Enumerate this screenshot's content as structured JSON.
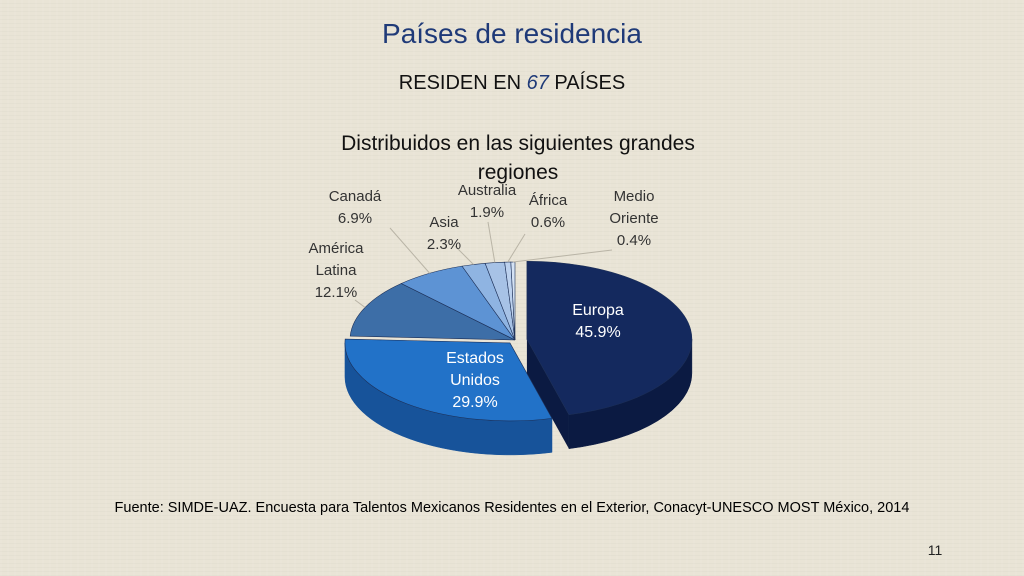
{
  "slide": {
    "title": "Países de residencia",
    "subtitle_prefix": "RESIDEN EN ",
    "subtitle_number": "67",
    "subtitle_suffix": " PAÍSES",
    "source": "Fuente: SIMDE-UAZ. Encuesta para Talentos Mexicanos Residentes en el Exterior, Conacyt-UNESCO MOST México, 2014",
    "page_number": "11"
  },
  "chart_data": {
    "type": "pie",
    "title": "Distribuidos en las siguientes grandes regiones",
    "series": [
      {
        "name": "Europa",
        "label": "Europa",
        "value": 45.9,
        "value_label": "45.9%",
        "color": "#14295e",
        "side": "#0b1a42"
      },
      {
        "name": "Estados Unidos",
        "label": "Estados Unidos",
        "value": 29.9,
        "value_label": "29.9%",
        "color": "#2272c8",
        "side": "#17539a"
      },
      {
        "name": "América Latina",
        "label": "América Latina",
        "value": 12.1,
        "value_label": "12.1%",
        "color": "#3d6ea7",
        "side": "#284f80"
      },
      {
        "name": "Canadá",
        "label": "Canadá",
        "value": 6.9,
        "value_label": "6.9%",
        "color": "#5d93d4",
        "side": "#416fa8"
      },
      {
        "name": "Asia",
        "label": "Asia",
        "value": 2.3,
        "value_label": "2.3%",
        "color": "#8fb4e2",
        "side": "#6a8fbe"
      },
      {
        "name": "Australia",
        "label": "Australia",
        "value": 1.9,
        "value_label": "1.9%",
        "color": "#a7c2e6",
        "side": "#7f9cc4"
      },
      {
        "name": "África",
        "label": "África",
        "value": 0.6,
        "value_label": "0.6%",
        "color": "#bcd1ee",
        "side": "#92aed0"
      },
      {
        "name": "Medio Oriente",
        "label": "Medio Oriente",
        "value": 0.4,
        "value_label": "0.4%",
        "color": "#d4e2f4",
        "side": "#a8bedc"
      }
    ]
  }
}
